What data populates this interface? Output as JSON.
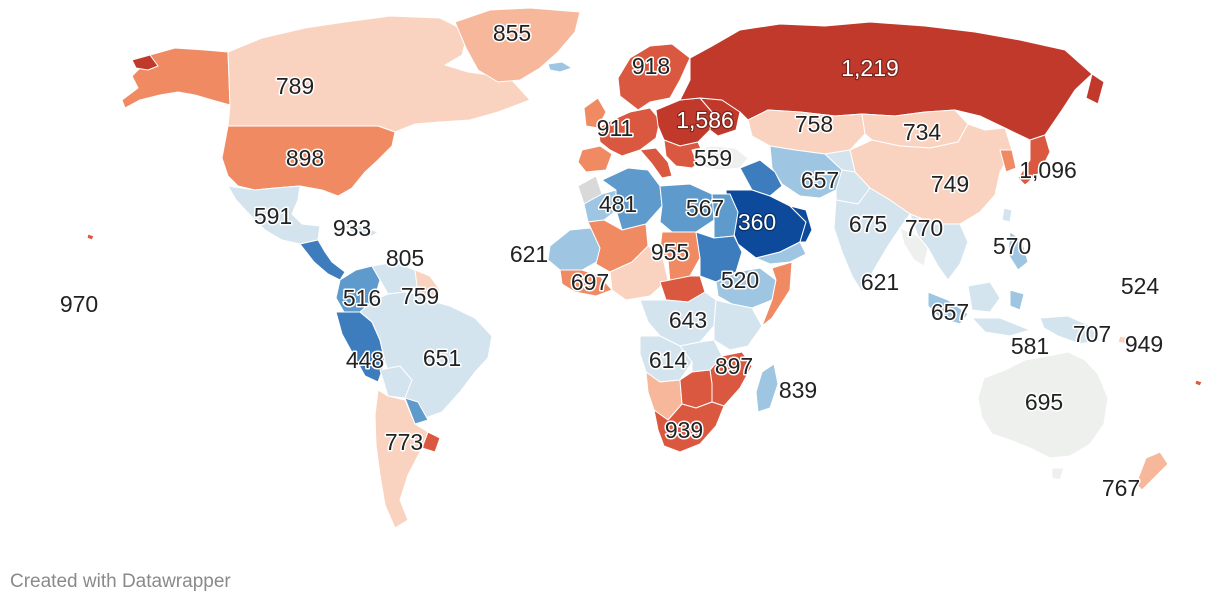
{
  "footer": {
    "credit": "Created with Datawrapper"
  },
  "colors": {
    "dark_red": "#c0392b",
    "red": "#d9583f",
    "orange": "#f08a63",
    "light_orange": "#f6b79a",
    "peach": "#f9d3bf",
    "neutral": "#eef0ed",
    "pale_blue": "#d4e4ef",
    "light_blue": "#9ec5e2",
    "blue": "#5e9acb",
    "mid_blue": "#3d7dbd",
    "dark_blue": "#0d4a9b",
    "grey": "#d9d9d9",
    "ocean": "#ffffff"
  },
  "labels": [
    {
      "id": "greenland",
      "text": "855"
    },
    {
      "id": "canada",
      "text": "789"
    },
    {
      "id": "usa",
      "text": "898"
    },
    {
      "id": "mexico",
      "text": "591"
    },
    {
      "id": "cuba",
      "text": "933"
    },
    {
      "id": "venezuela",
      "text": "805"
    },
    {
      "id": "guyana",
      "text": "759"
    },
    {
      "id": "colombia",
      "text": "516"
    },
    {
      "id": "peru",
      "text": "448"
    },
    {
      "id": "brazil",
      "text": "651"
    },
    {
      "id": "argentina",
      "text": "773"
    },
    {
      "id": "hawaii",
      "text": "970"
    },
    {
      "id": "scandinavia",
      "text": "918"
    },
    {
      "id": "western-europe",
      "text": "911"
    },
    {
      "id": "eastern-europe",
      "text": "1,586"
    },
    {
      "id": "russia",
      "text": "1,219"
    },
    {
      "id": "kazakhstan",
      "text": "758"
    },
    {
      "id": "mongolia",
      "text": "734"
    },
    {
      "id": "china",
      "text": "749"
    },
    {
      "id": "japan",
      "text": "1,096"
    },
    {
      "id": "turkey",
      "text": "559"
    },
    {
      "id": "iran",
      "text": "657"
    },
    {
      "id": "saudi-arabia",
      "text": "360"
    },
    {
      "id": "egypt",
      "text": "567"
    },
    {
      "id": "algeria",
      "text": "481"
    },
    {
      "id": "west-africa",
      "text": "621"
    },
    {
      "id": "mali",
      "text": "697"
    },
    {
      "id": "chad",
      "text": "955"
    },
    {
      "id": "ethiopia",
      "text": "520"
    },
    {
      "id": "congo",
      "text": "643"
    },
    {
      "id": "angola",
      "text": "614"
    },
    {
      "id": "mozambique",
      "text": "897"
    },
    {
      "id": "madagascar",
      "text": "839"
    },
    {
      "id": "south-africa",
      "text": "939"
    },
    {
      "id": "india",
      "text": "675"
    },
    {
      "id": "bangladesh",
      "text": "770"
    },
    {
      "id": "philippines",
      "text": "570"
    },
    {
      "id": "sri-lanka",
      "text": "621"
    },
    {
      "id": "indonesia",
      "text": "657"
    },
    {
      "id": "timor",
      "text": "581"
    },
    {
      "id": "papua",
      "text": "707"
    },
    {
      "id": "micronesia",
      "text": "524"
    },
    {
      "id": "solomon",
      "text": "949"
    },
    {
      "id": "australia",
      "text": "695"
    },
    {
      "id": "new-zealand",
      "text": "767"
    }
  ]
}
